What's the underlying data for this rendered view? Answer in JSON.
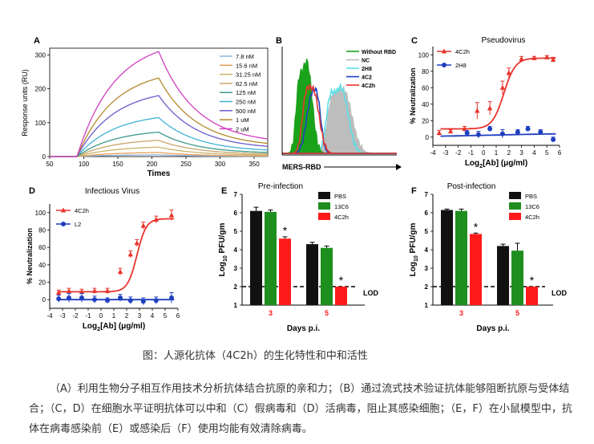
{
  "figure": {
    "caption": "图：人源化抗体（4C2h）的生化特性和中和活性",
    "description": "（A）利用生物分子相互作用技术分析抗体结合抗原的亲和力；（B）通过流式技术验证抗体能够阻断抗原与受体结合；（C，D）在细胞水平证明抗体可以中和（C）假病毒和（D）活病毒，阻止其感染细胞；（E，F）在小鼠模型中，抗体在病毒感染前（E）或感染后（F）使用均能有效清除病毒。"
  },
  "colors": {
    "red": "#e8342d",
    "blue": "#1f3fbf",
    "green": "#1aa31a",
    "black": "#111111",
    "gray": "#bdbdbd",
    "cyan": "#59e0e8",
    "red_bar": "#ff1a1a",
    "green_bar": "#1e8f1e"
  },
  "chart_data": [
    {
      "panel": "A",
      "type": "line",
      "xlabel": "Times",
      "ylabel": "Response units (RU)",
      "xlim": [
        50,
        370
      ],
      "ylim": [
        0,
        320
      ],
      "xticks": [
        "50",
        "100",
        "150",
        "200",
        "250",
        "300",
        "350"
      ],
      "yticks": [
        "0",
        "100",
        "200",
        "300"
      ],
      "assoc_start": 90,
      "dissoc_start": 210,
      "series": [
        {
          "name": "7.8 nM",
          "color": "#8db3d9",
          "plateau": 5
        },
        {
          "name": "15.6 nM",
          "color": "#e8a05a",
          "plateau": 12
        },
        {
          "name": "31.25 nM",
          "color": "#c9b56a",
          "plateau": 28
        },
        {
          "name": "62.5 nM",
          "color": "#c7a66b",
          "plateau": 48
        },
        {
          "name": "125 nM",
          "color": "#3e9a8b",
          "plateau": 72
        },
        {
          "name": "250 nM",
          "color": "#3fb3d6",
          "plateau": 115
        },
        {
          "name": "500 nM",
          "color": "#6a5acd",
          "plateau": 180
        },
        {
          "name": "1 uM",
          "color": "#b58a2a",
          "plateau": 232
        },
        {
          "name": "2 uM",
          "color": "#d13fbf",
          "plateau": 310
        }
      ]
    },
    {
      "panel": "B",
      "type": "area",
      "xlabel": "MERS-RBD",
      "series": [
        {
          "name": "Without RBD",
          "color": "#1aa31a"
        },
        {
          "name": "NC",
          "color": "#bdbdbd"
        },
        {
          "name": "2H8",
          "color": "#59e0e8"
        },
        {
          "name": "4C2",
          "color": "#1f3fbf"
        },
        {
          "name": "4C2h",
          "color": "#e8342d"
        }
      ]
    },
    {
      "panel": "C",
      "type": "scatter",
      "title": "Pseudovirus",
      "xlabel": "Log2[Ab] (μg/ml)",
      "ylabel": "% Neutralization",
      "xlim": [
        -4,
        6
      ],
      "ylim": [
        -10,
        110
      ],
      "xticks": [
        "-4",
        "-3",
        "-2",
        "-1",
        "0",
        "1",
        "2",
        "3",
        "4",
        "5",
        "6"
      ],
      "yticks": [
        "0",
        "20",
        "40",
        "60",
        "80",
        "100"
      ],
      "series": [
        {
          "name": "4C2h",
          "color": "#e8342d",
          "marker": "triangle",
          "x": [
            -3.5,
            -2.6,
            -1.5,
            -0.5,
            0.5,
            1.5,
            2.0,
            3.0,
            4.0,
            5.0,
            5.5
          ],
          "y": [
            5,
            7,
            10,
            32,
            35,
            60,
            78,
            95,
            96,
            97,
            94
          ],
          "err": [
            3,
            2,
            3,
            10,
            8,
            8,
            6,
            3,
            2,
            2,
            3
          ],
          "fit": {
            "bottom": 10,
            "top": 96,
            "ec50": 1.6,
            "hill": 1.6
          }
        },
        {
          "name": "2H8",
          "color": "#1f3fbf",
          "marker": "circle",
          "x": [
            -1.3,
            -0.4,
            0.5,
            1.5,
            2.7,
            3.5,
            4.5,
            5.5
          ],
          "y": [
            5,
            3,
            10,
            4,
            6,
            10,
            6,
            -3
          ],
          "err": [
            3,
            4,
            3,
            5,
            3,
            3,
            3,
            3
          ],
          "fit": {
            "bottom": 0,
            "top": 5,
            "ec50": 1.0,
            "hill": 0.2
          }
        }
      ]
    },
    {
      "panel": "D",
      "type": "scatter",
      "title": "Infectious Virus",
      "xlabel": "Log2[Ab] (μg/ml)",
      "ylabel": "% Neutralization",
      "xlim": [
        -4,
        6
      ],
      "ylim": [
        -10,
        110
      ],
      "xticks": [
        "-4",
        "-3",
        "-2",
        "-1",
        "0",
        "1",
        "2",
        "3",
        "4",
        "5",
        "6"
      ],
      "yticks": [
        "0",
        "20",
        "40",
        "60",
        "80",
        "100"
      ],
      "series": [
        {
          "name": "4C2h",
          "color": "#e8342d",
          "marker": "triangle",
          "x": [
            -3.3,
            -2.5,
            -1.5,
            -0.5,
            0.5,
            1.5,
            2.3,
            2.8,
            3.3,
            4.3,
            5.5
          ],
          "y": [
            8,
            10,
            9,
            10,
            10,
            32,
            52,
            65,
            85,
            92,
            97
          ],
          "err": [
            3,
            3,
            3,
            3,
            3,
            4,
            4,
            4,
            4,
            4,
            6
          ],
          "fit": {
            "bottom": 9,
            "top": 93,
            "ec50": 2.8,
            "hill": 2.0
          }
        },
        {
          "name": "L2",
          "color": "#1f3fbf",
          "marker": "circle",
          "x": [
            -3.3,
            -2.5,
            -1.5,
            -0.5,
            0.5,
            1.5,
            2.3,
            3.3,
            4.3,
            5.5
          ],
          "y": [
            1,
            2,
            2,
            0,
            -1,
            2,
            -1,
            -2,
            -1,
            2
          ],
          "err": [
            4,
            5,
            5,
            4,
            3,
            4,
            4,
            4,
            4,
            6
          ],
          "fit": {
            "bottom": 0,
            "top": 0,
            "ec50": 0,
            "hill": 1
          }
        }
      ]
    },
    {
      "panel": "E",
      "type": "bar",
      "title": "Pre-infection",
      "xlabel": "Days p.i.",
      "ylabel": "Log10 PFU/gm",
      "ylim": [
        1,
        7
      ],
      "yticks": [
        "1",
        "2",
        "3",
        "4",
        "5",
        "6",
        "7"
      ],
      "categories": [
        "3",
        "5"
      ],
      "lod": 2,
      "lod_label": "LOD",
      "series": [
        {
          "name": "PBS",
          "color": "#111111",
          "values": [
            6.1,
            4.3
          ],
          "err": [
            0.2,
            0.1
          ]
        },
        {
          "name": "13C6",
          "color": "#1e8f1e",
          "values": [
            6.05,
            4.1
          ],
          "err": [
            0.1,
            0.1
          ]
        },
        {
          "name": "4C2h",
          "color": "#ff1a1a",
          "values": [
            4.6,
            2.0
          ],
          "err": [
            0.1,
            0.0
          ]
        }
      ],
      "stars": [
        {
          "category": 0,
          "series": 2,
          "label": "*"
        },
        {
          "category": 1,
          "series": 2,
          "label": "*"
        }
      ]
    },
    {
      "panel": "F",
      "type": "bar",
      "title": "Post-infection",
      "xlabel": "Days p.i.",
      "ylabel": "Log10 PFU/gm",
      "ylim": [
        1,
        7
      ],
      "yticks": [
        "1",
        "2",
        "3",
        "4",
        "5",
        "6",
        "7"
      ],
      "categories": [
        "3",
        "5"
      ],
      "lod": 2,
      "lod_label": "LOD",
      "series": [
        {
          "name": "PBS",
          "color": "#111111",
          "values": [
            6.15,
            4.2
          ],
          "err": [
            0.05,
            0.1
          ]
        },
        {
          "name": "13C6",
          "color": "#1e8f1e",
          "values": [
            6.1,
            3.95
          ],
          "err": [
            0.1,
            0.4
          ]
        },
        {
          "name": "4C2h",
          "color": "#ff1a1a",
          "values": [
            4.85,
            2.0
          ],
          "err": [
            0.05,
            0.0
          ]
        }
      ],
      "stars": [
        {
          "category": 0,
          "series": 2,
          "label": "*"
        },
        {
          "category": 1,
          "series": 2,
          "label": "*"
        }
      ]
    }
  ]
}
